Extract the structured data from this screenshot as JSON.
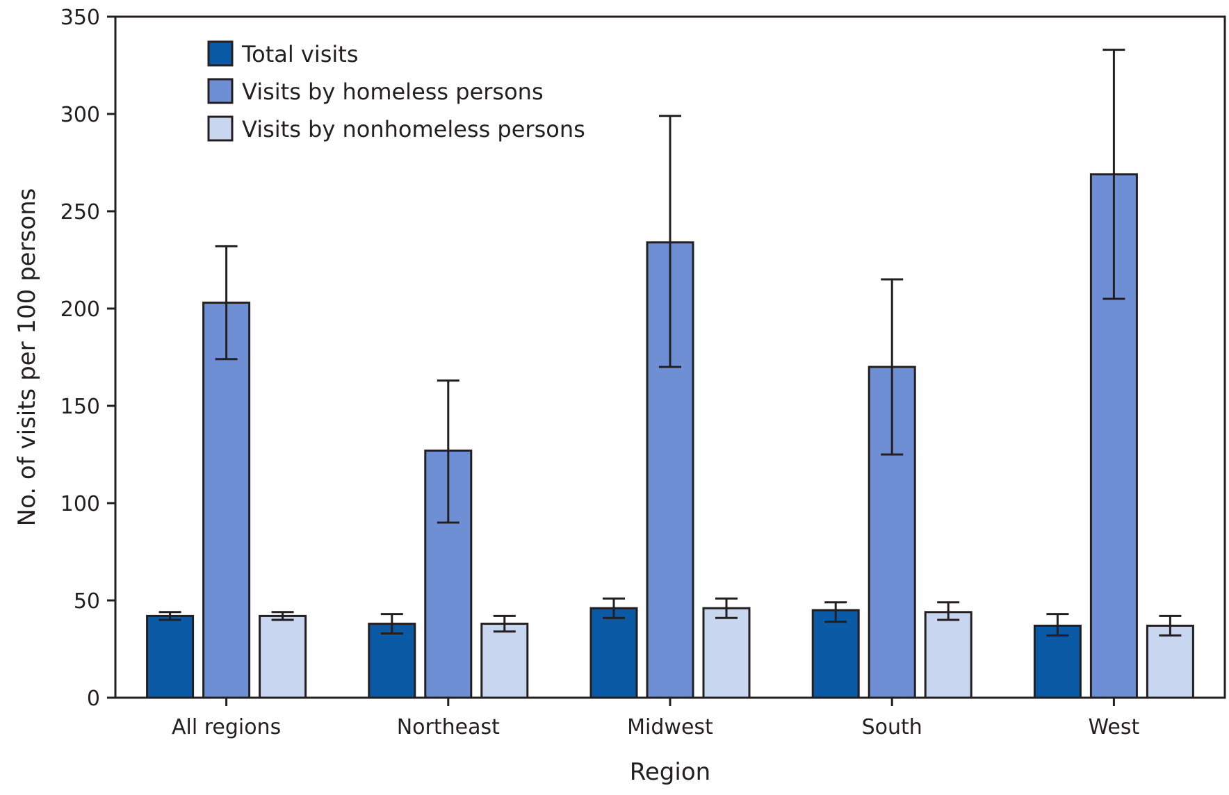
{
  "chart_data": {
    "type": "bar",
    "title": "",
    "xlabel": "Region",
    "ylabel": "No. of visits per 100 persons",
    "ylim": [
      0,
      350
    ],
    "yticks": [
      0,
      50,
      100,
      150,
      200,
      250,
      300,
      350
    ],
    "categories": [
      "All regions",
      "Northeast",
      "Midwest",
      "South",
      "West"
    ],
    "grid": false,
    "legend_position": "top-left",
    "series": [
      {
        "name": "Total visits",
        "color": "#0a5aa6",
        "values": [
          42,
          38,
          46,
          45,
          37
        ],
        "error_low": [
          40,
          33,
          41,
          39,
          32
        ],
        "error_high": [
          44,
          43,
          51,
          49,
          43
        ]
      },
      {
        "name": "Visits by homeless persons",
        "color": "#6f8fd4",
        "values": [
          203,
          127,
          234,
          170,
          269
        ],
        "error_low": [
          174,
          90,
          170,
          125,
          205
        ],
        "error_high": [
          232,
          163,
          299,
          215,
          333
        ]
      },
      {
        "name": "Visits by nonhomeless persons",
        "color": "#c9d6ef",
        "values": [
          42,
          38,
          46,
          44,
          37
        ],
        "error_low": [
          40,
          34,
          41,
          40,
          32
        ],
        "error_high": [
          44,
          42,
          51,
          49,
          42
        ]
      }
    ]
  }
}
